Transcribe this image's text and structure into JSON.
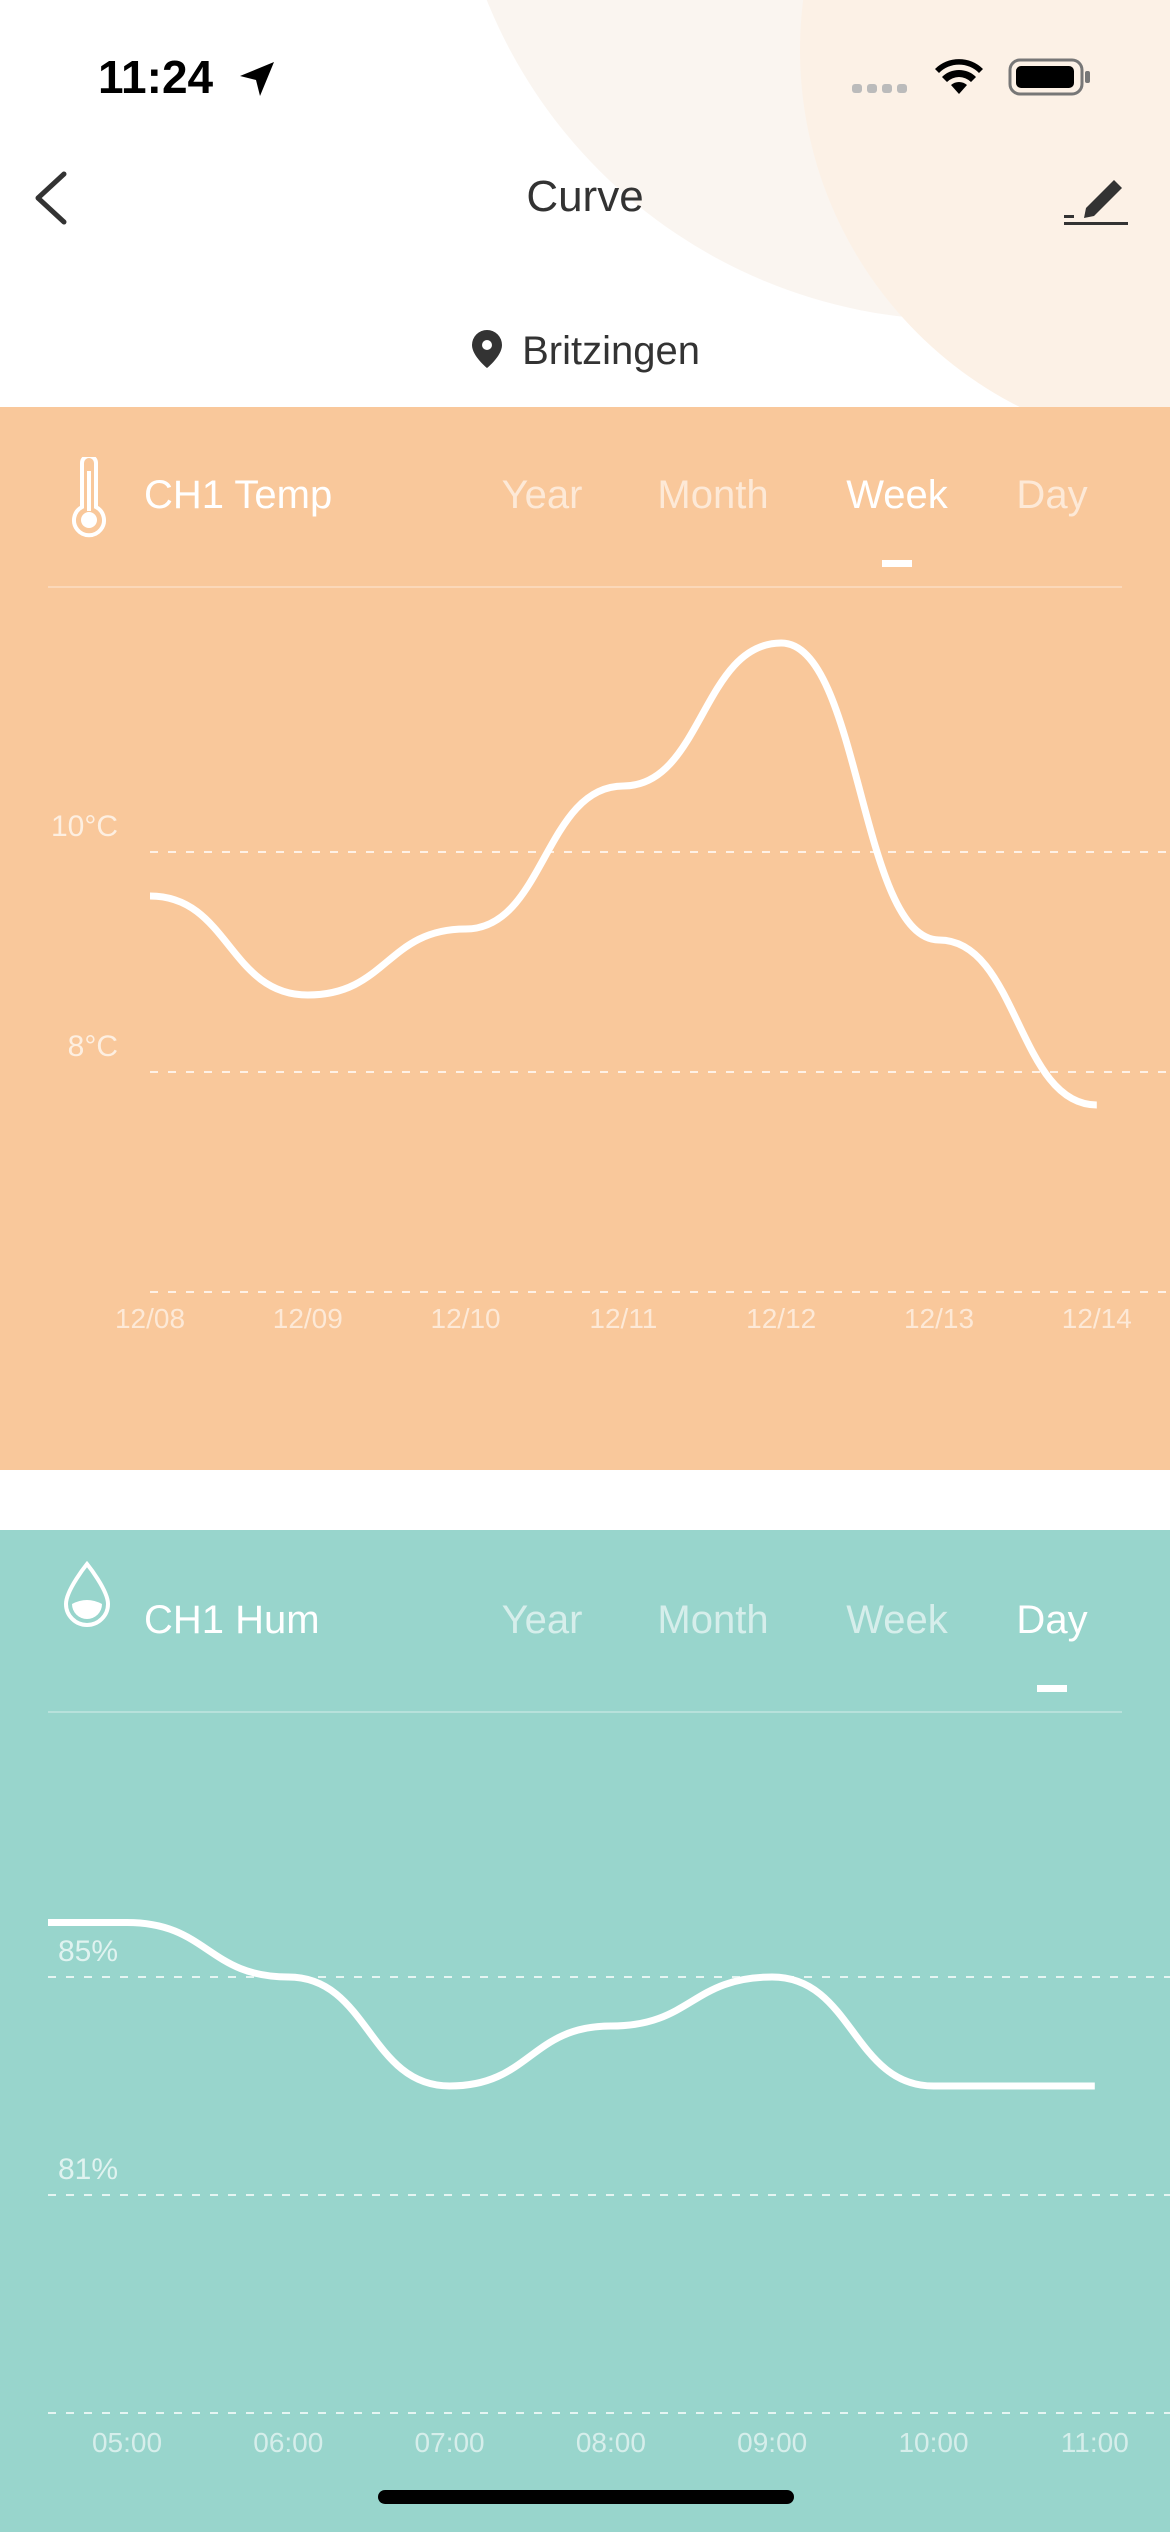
{
  "status_bar": {
    "time": "11:24",
    "icons": [
      "location-arrow-icon",
      "signal-icon",
      "wifi-icon",
      "battery-icon"
    ]
  },
  "nav": {
    "title": "Curve",
    "back_icon": "chevron-left-icon",
    "edit_icon": "pencil-icon"
  },
  "location": {
    "icon": "map-pin-icon",
    "name": "Britzingen"
  },
  "colors": {
    "temp_card": "#F9C89B",
    "hum_card": "#98D5CC",
    "line": "#FFFFFF"
  },
  "chart_data": [
    {
      "type": "line",
      "title": "CH1 Temp",
      "icon": "thermometer-icon",
      "tabs": [
        "Year",
        "Month",
        "Week",
        "Day"
      ],
      "active_tab": "Week",
      "categories": [
        "12/08",
        "12/09",
        "12/10",
        "12/11",
        "12/12",
        "12/13",
        "12/14"
      ],
      "values": [
        9.6,
        8.7,
        9.3,
        10.6,
        11.9,
        9.2,
        7.7
      ],
      "yticks": [
        {
          "value": 10,
          "label": "10°C"
        },
        {
          "value": 8,
          "label": "8°C"
        },
        {
          "value": 6,
          "label": ""
        }
      ],
      "ylim": [
        6,
        12.3
      ],
      "grid": true
    },
    {
      "type": "line",
      "title": "CH1 Hum",
      "icon": "water-drop-icon",
      "tabs": [
        "Year",
        "Month",
        "Week",
        "Day"
      ],
      "active_tab": "Day",
      "categories": [
        "05:00",
        "06:00",
        "07:00",
        "08:00",
        "09:00",
        "10:00",
        "11:00"
      ],
      "values": [
        86.0,
        85.0,
        83.0,
        84.1,
        85.0,
        83.0,
        83.0
      ],
      "yticks": [
        {
          "value": 85,
          "label": "85%"
        },
        {
          "value": 81,
          "label": "81%"
        },
        {
          "value": 77,
          "label": ""
        }
      ],
      "ylim": [
        77,
        90
      ],
      "grid": true
    }
  ]
}
